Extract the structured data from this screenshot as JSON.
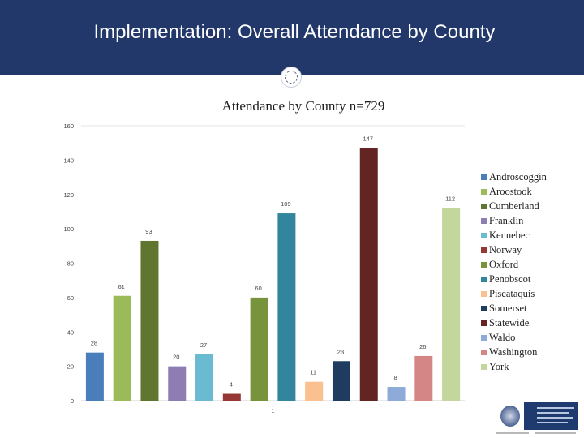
{
  "slide": {
    "title": "Implementation:  Overall Attendance by County"
  },
  "chart_data": {
    "type": "bar",
    "title": "Attendance by County n=729",
    "xlabel": "",
    "ylabel": "",
    "ylim": [
      0,
      160
    ],
    "yticks": [
      0,
      20,
      40,
      60,
      80,
      100,
      120,
      140,
      160
    ],
    "grid": false,
    "legend_position": "right",
    "categories": [
      "Androscoggin",
      "Aroostook",
      "Cumberland",
      "Franklin",
      "Kennebec",
      "Norway",
      "Oxford",
      "Penobscot",
      "Piscataquis",
      "Somerset",
      "Statewide",
      "Waldo",
      "Washington",
      "York"
    ],
    "values": [
      28,
      61,
      93,
      20,
      27,
      4,
      60,
      109,
      11,
      23,
      147,
      8,
      26,
      112
    ],
    "colors": [
      "#4a7ebb",
      "#9bbb59",
      "#5f7530",
      "#8d7db3",
      "#6abbd1",
      "#953735",
      "#77933c",
      "#31859c",
      "#fac090",
      "#1f3b5f",
      "#632523",
      "#8eaad9",
      "#d48686",
      "#c3d69b"
    ],
    "data_labels": [
      "28",
      "61",
      "93",
      "20",
      "27",
      "4",
      "60",
      "109",
      "11",
      "23",
      "147",
      "8",
      "26",
      "112"
    ],
    "extra_labels": [
      "1"
    ]
  }
}
